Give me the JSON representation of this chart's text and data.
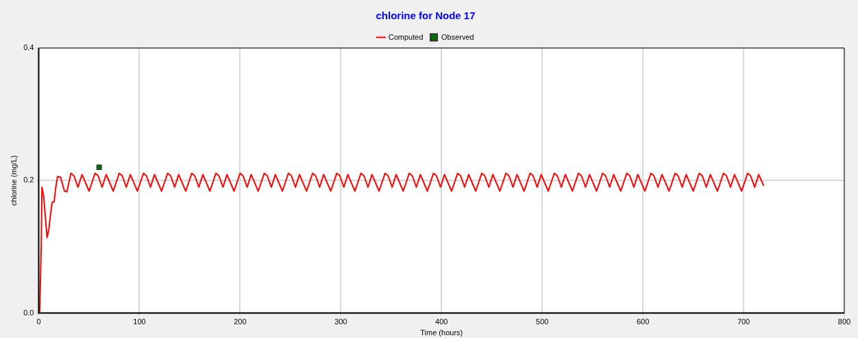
{
  "chart_data": {
    "type": "line",
    "title": "chlorine for Node 17",
    "xlabel": "Time (hours)",
    "ylabel": "chlorine (mg/L)",
    "xlim": [
      0,
      800
    ],
    "xticks": [
      0,
      100,
      200,
      300,
      400,
      500,
      600,
      700,
      800
    ],
    "ylim": [
      0,
      0.4
    ],
    "yticks": [
      {
        "value": 0,
        "label": "0.0"
      },
      {
        "value": 0.2,
        "label": "0.2"
      },
      {
        "value": 0.4,
        "label": "0.4"
      }
    ],
    "grid": true,
    "legend": "top",
    "line_style": "solid",
    "series": [
      {
        "name": "Computed",
        "color": "#ff0000",
        "marker": "none",
        "x": [
          0,
          1,
          2.5,
          3.2,
          5,
          8.3,
          10,
          11.8,
          13.4,
          15.3,
          17,
          18.7,
          21.7,
          25.6,
          28,
          32,
          35,
          39,
          43,
          50,
          56,
          59,
          63,
          67,
          74,
          80,
          83,
          87,
          91,
          98,
          104,
          107,
          111,
          115,
          122,
          128,
          131,
          135,
          139,
          146,
          152,
          155,
          159,
          163,
          170,
          176,
          179,
          183,
          187,
          194,
          200,
          203,
          207,
          211,
          218,
          224,
          227,
          231,
          235,
          242,
          248,
          251,
          255,
          259,
          266,
          272,
          275,
          279,
          283,
          290,
          296,
          299,
          303,
          307,
          314,
          320,
          323,
          327,
          331,
          338,
          344,
          347,
          351,
          355,
          362,
          368,
          371,
          375,
          379,
          386,
          392,
          395,
          399,
          403,
          410,
          416,
          419,
          423,
          427,
          434,
          440,
          443,
          447,
          451,
          458,
          464,
          467,
          471,
          475,
          482,
          488,
          491,
          495,
          499,
          506,
          512,
          515,
          519,
          523,
          530,
          536,
          539,
          543,
          547,
          554,
          560,
          563,
          567,
          571,
          578,
          584,
          587,
          591,
          595,
          602,
          608,
          611,
          615,
          619,
          626,
          632,
          635,
          639,
          643,
          650,
          656,
          659,
          663,
          667,
          674,
          680,
          683,
          687,
          691,
          698,
          704,
          707,
          711,
          715,
          720
        ],
        "values": [
          0,
          0.003,
          0.1,
          0.19,
          0.175,
          0.114,
          0.125,
          0.15,
          0.167,
          0.168,
          0.19,
          0.206,
          0.205,
          0.184,
          0.183,
          0.211,
          0.207,
          0.19,
          0.209,
          0.184,
          0.211,
          0.207,
          0.19,
          0.209,
          0.184,
          0.211,
          0.207,
          0.19,
          0.209,
          0.184,
          0.211,
          0.207,
          0.19,
          0.209,
          0.184,
          0.211,
          0.207,
          0.19,
          0.209,
          0.184,
          0.211,
          0.207,
          0.19,
          0.209,
          0.184,
          0.211,
          0.207,
          0.19,
          0.209,
          0.184,
          0.211,
          0.207,
          0.19,
          0.209,
          0.184,
          0.211,
          0.207,
          0.19,
          0.209,
          0.184,
          0.211,
          0.207,
          0.19,
          0.209,
          0.184,
          0.211,
          0.207,
          0.19,
          0.209,
          0.184,
          0.211,
          0.207,
          0.19,
          0.209,
          0.184,
          0.211,
          0.207,
          0.19,
          0.209,
          0.184,
          0.211,
          0.207,
          0.19,
          0.209,
          0.184,
          0.211,
          0.207,
          0.19,
          0.209,
          0.184,
          0.211,
          0.207,
          0.19,
          0.209,
          0.184,
          0.211,
          0.207,
          0.19,
          0.209,
          0.184,
          0.211,
          0.207,
          0.19,
          0.209,
          0.184,
          0.211,
          0.207,
          0.19,
          0.209,
          0.184,
          0.211,
          0.207,
          0.19,
          0.209,
          0.184,
          0.211,
          0.207,
          0.19,
          0.209,
          0.184,
          0.211,
          0.207,
          0.19,
          0.209,
          0.184,
          0.211,
          0.207,
          0.19,
          0.209,
          0.184,
          0.211,
          0.207,
          0.19,
          0.209,
          0.184,
          0.211,
          0.207,
          0.19,
          0.209,
          0.184,
          0.211,
          0.207,
          0.19,
          0.209,
          0.184,
          0.211,
          0.207,
          0.19,
          0.209,
          0.184,
          0.211,
          0.207,
          0.19,
          0.209,
          0.184,
          0.211,
          0.207,
          0.19,
          0.209,
          0.192
        ]
      },
      {
        "name": "Observed",
        "type": "scatter",
        "color": "#007000",
        "marker": "square",
        "x": [
          60
        ],
        "values": [
          0.22
        ]
      }
    ]
  }
}
